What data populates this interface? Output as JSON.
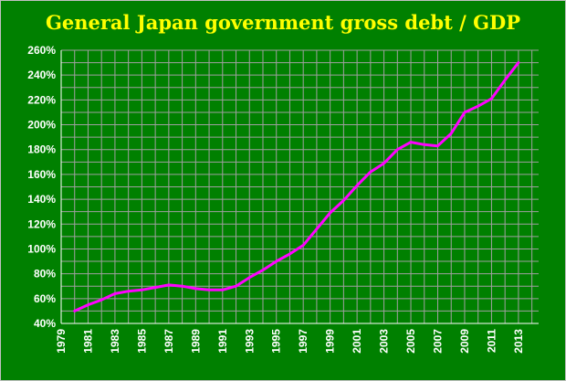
{
  "chart_data": {
    "type": "line",
    "title": "General Japan government gross debt / GDP",
    "xlabel": "",
    "ylabel": "",
    "xlim": [
      1979,
      2014.5
    ],
    "ylim": [
      40,
      260
    ],
    "x_ticks": [
      "1979",
      "1981",
      "1983",
      "1985",
      "1987",
      "1989",
      "1991",
      "1993",
      "1995",
      "1997",
      "1999",
      "2001",
      "2003",
      "2005",
      "2007",
      "2009",
      "2011",
      "2013"
    ],
    "y_ticks": [
      "40%",
      "60%",
      "80%",
      "100%",
      "120%",
      "140%",
      "160%",
      "180%",
      "200%",
      "220%",
      "240%",
      "260%"
    ],
    "grid": true,
    "series": [
      {
        "color": "#ff00ff",
        "x": [
          1980,
          1981,
          1982,
          1983,
          1984,
          1985,
          1986,
          1987,
          1988,
          1989,
          1990,
          1991,
          1992,
          1993,
          1994,
          1995,
          1996,
          1997,
          1998,
          1999,
          2000,
          2001,
          2002,
          2003,
          2004,
          2005,
          2006,
          2007,
          2008,
          2009,
          2010,
          2011,
          2012,
          2013
        ],
        "values": [
          50,
          55,
          59,
          64,
          66,
          67,
          69,
          71,
          70,
          68,
          67,
          67,
          70,
          77,
          83,
          90,
          96,
          103,
          116,
          129,
          139,
          151,
          162,
          169,
          180,
          186,
          184,
          183,
          193,
          210,
          215,
          221,
          236,
          250
        ]
      }
    ],
    "colors": {
      "background": "#000000",
      "plot_background": "#008000",
      "grid": "#a0a0a0",
      "title": "#ffff00",
      "text": "#ffffff"
    }
  }
}
